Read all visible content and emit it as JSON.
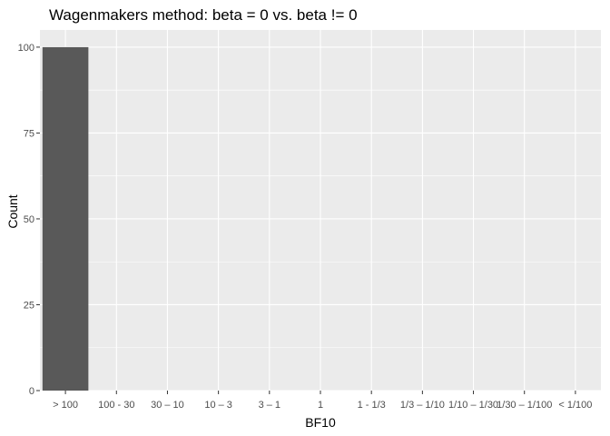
{
  "chart_data": {
    "type": "bar",
    "title": "Wagenmakers method: beta = 0 vs. beta != 0",
    "xlabel": "BF10",
    "ylabel": "Count",
    "categories": [
      "> 100",
      "100 - 30",
      "30 – 10",
      "10 – 3",
      "3 – 1",
      "1",
      "1 - 1/3",
      "1/3 – 1/10",
      "1/10 – 1/30",
      "1/30 – 1/100",
      "< 1/100"
    ],
    "values": [
      100,
      0,
      0,
      0,
      0,
      0,
      0,
      0,
      0,
      0,
      0
    ],
    "ylim": [
      0,
      105
    ],
    "yticks": [
      0,
      25,
      50,
      75,
      100
    ],
    "grid": true,
    "colors": {
      "bar": "#595959",
      "panel": "#ebebeb",
      "grid_major": "#ffffff",
      "tick_text": "#4d4d4d"
    }
  }
}
